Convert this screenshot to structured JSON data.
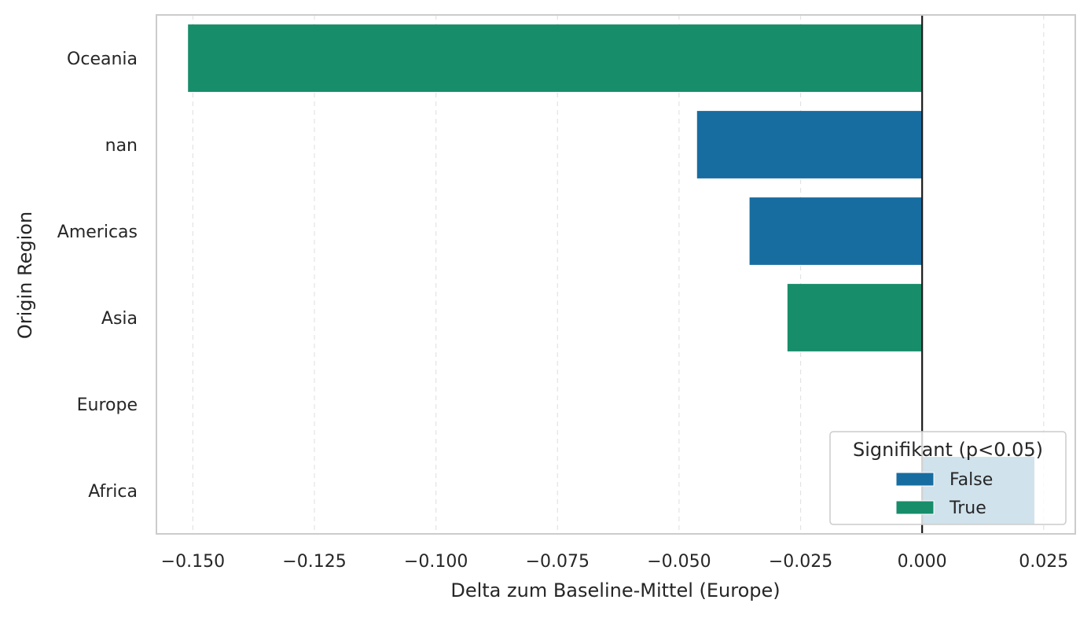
{
  "chart_data": {
    "type": "bar",
    "orientation": "horizontal",
    "title": "",
    "xlabel": "Delta zum Baseline-Mittel (Europe)",
    "ylabel": "Origin Region",
    "xlim": [
      -0.1575,
      0.0315
    ],
    "categories": [
      "Oceania",
      "nan",
      "Americas",
      "Asia",
      "Europe",
      "Africa"
    ],
    "values": [
      -0.151,
      -0.0463,
      -0.0355,
      -0.0277,
      0.0,
      0.0231
    ],
    "significant": [
      "True",
      "False",
      "False",
      "True",
      "True",
      "False"
    ],
    "x_ticks": [
      {
        "value": -0.15,
        "label": "−0.150"
      },
      {
        "value": -0.125,
        "label": "−0.125"
      },
      {
        "value": -0.1,
        "label": "−0.100"
      },
      {
        "value": -0.075,
        "label": "−0.075"
      },
      {
        "value": -0.05,
        "label": "−0.050"
      },
      {
        "value": -0.025,
        "label": "−0.025"
      },
      {
        "value": 0.0,
        "label": "0.000"
      },
      {
        "value": 0.025,
        "label": "0.025"
      }
    ],
    "reference_line": 0.0,
    "grid": "x-dashed",
    "legend": {
      "title": "Signifikant (p<0.05)",
      "placement": "lower-right",
      "entries": [
        {
          "label": "False",
          "color": "#176da0"
        },
        {
          "label": "True",
          "color": "#178d6a"
        }
      ]
    },
    "colors": {
      "False": "#176da0",
      "True": "#178d6a"
    }
  }
}
